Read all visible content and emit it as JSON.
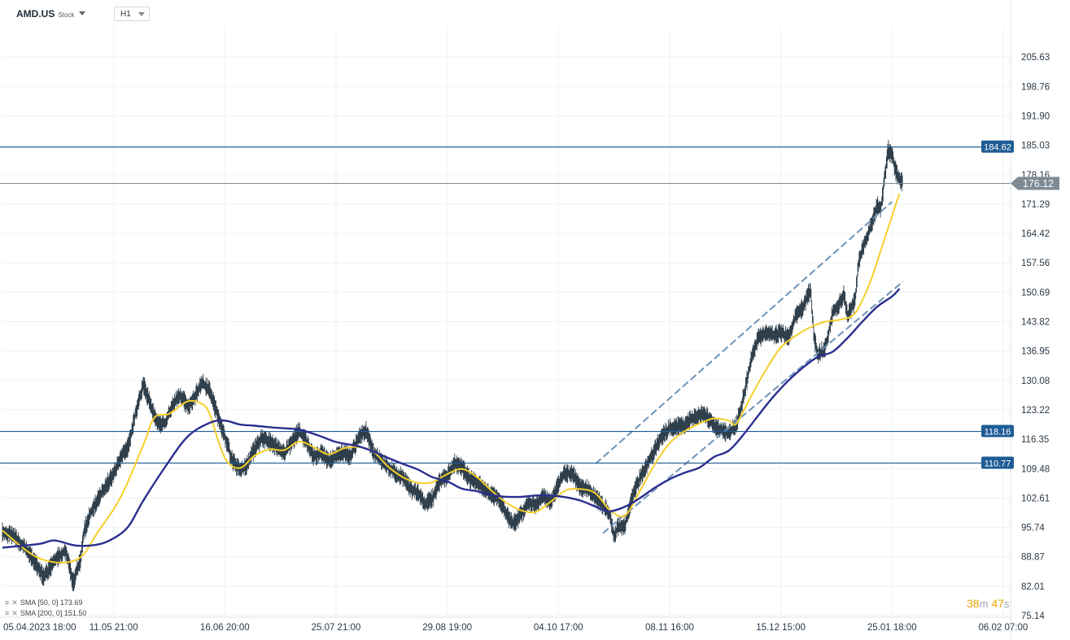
{
  "header": {
    "symbol": "AMD.US",
    "type": "Stock",
    "timeframe": "H1"
  },
  "legend": [
    {
      "label": "SMA [50, 0]",
      "value": "173.69",
      "color": "#f5cf2a"
    },
    {
      "label": "SMA [200, 0]",
      "value": "151.50",
      "color": "#2a2f8f"
    }
  ],
  "timer": {
    "minutes": "38",
    "m": "m",
    "seconds": "47",
    "s": "s"
  },
  "colors": {
    "candles": "#2f3f4b",
    "sma50": "#f5cf2a",
    "sma200": "#2a2f8f",
    "hline": "#1f5d96",
    "channel": "#6e93b8",
    "price_tag": "#7e8a94",
    "level_tag": "#1f5d96",
    "grid": "#eef1f4"
  },
  "chart_data": {
    "type": "line",
    "title": "",
    "ylim": [
      75.14,
      212.5
    ],
    "y_ticks": [
      "205.63",
      "198.76",
      "191.90",
      "185.03",
      "178.16",
      "171.29",
      "164.42",
      "157.56",
      "150.69",
      "143.82",
      "136.95",
      "130.08",
      "123.22",
      "116.35",
      "109.48",
      "102.61",
      "95.74",
      "88.87",
      "82.01",
      "75.14"
    ],
    "x_ticks": [
      "05.04.2023  18:00",
      "11.05  21:00",
      "16.06  20:00",
      "25.07  21:00",
      "29.08  19:00",
      "04.10  17:00",
      "08.11  16:00",
      "15.12  15:00",
      "25.01  18:00",
      "06.02  07:00"
    ],
    "current_price": "176.12",
    "levels": [
      "184.62",
      "118.16",
      "110.77"
    ],
    "series": [
      {
        "name": "price",
        "points": [
          [
            0,
            94.5
          ],
          [
            3,
            93.8
          ],
          [
            6,
            91
          ],
          [
            9,
            87.3
          ],
          [
            11,
            84.2
          ],
          [
            13,
            86.5
          ],
          [
            15,
            88.9
          ],
          [
            17,
            90.3
          ],
          [
            18,
            87.1
          ],
          [
            19,
            82.6
          ],
          [
            21,
            88
          ],
          [
            22,
            94.8
          ],
          [
            24,
            99.6
          ],
          [
            27,
            104.1
          ],
          [
            30,
            108.3
          ],
          [
            32,
            112.1
          ],
          [
            34,
            114.7
          ],
          [
            36,
            122.7
          ],
          [
            38,
            129.2
          ],
          [
            40,
            124.3
          ],
          [
            42,
            119.8
          ],
          [
            44,
            120.4
          ],
          [
            46,
            124.5
          ],
          [
            48,
            126.8
          ],
          [
            50,
            123.8
          ],
          [
            52,
            126.5
          ],
          [
            54,
            129.6
          ],
          [
            56,
            127.5
          ],
          [
            58,
            122
          ],
          [
            60,
            117
          ],
          [
            62,
            111.5
          ],
          [
            64,
            109.2
          ],
          [
            66,
            110.4
          ],
          [
            68,
            114
          ],
          [
            70,
            116.7
          ],
          [
            72,
            115.8
          ],
          [
            74,
            114.5
          ],
          [
            76,
            112.8
          ],
          [
            78,
            115.5
          ],
          [
            80,
            118.3
          ],
          [
            82,
            115.7
          ],
          [
            84,
            112.2
          ],
          [
            86,
            113.3
          ],
          [
            88,
            111.2
          ],
          [
            90,
            112.5
          ],
          [
            92,
            113.2
          ],
          [
            94,
            112.4
          ],
          [
            96,
            116.6
          ],
          [
            98,
            118.6
          ],
          [
            100,
            113.2
          ],
          [
            102,
            111.3
          ],
          [
            104,
            110.2
          ],
          [
            106,
            108.3
          ],
          [
            108,
            107.6
          ],
          [
            110,
            104.7
          ],
          [
            112,
            104
          ],
          [
            114,
            101.3
          ],
          [
            116,
            102.5
          ],
          [
            118,
            106.4
          ],
          [
            120,
            107.8
          ],
          [
            122,
            110.7
          ],
          [
            124,
            109.7
          ],
          [
            126,
            107.2
          ],
          [
            128,
            106.2
          ],
          [
            130,
            104.7
          ],
          [
            132,
            103.3
          ],
          [
            134,
            102.4
          ],
          [
            136,
            98.5
          ],
          [
            138,
            96.6
          ],
          [
            140,
            98.8
          ],
          [
            142,
            101.6
          ],
          [
            144,
            101.1
          ],
          [
            146,
            103.3
          ],
          [
            148,
            101.5
          ],
          [
            150,
            105.9
          ],
          [
            152,
            108.6
          ],
          [
            154,
            107.9
          ],
          [
            156,
            104.8
          ],
          [
            158,
            104.8
          ],
          [
            160,
            102.8
          ],
          [
            162,
            101
          ],
          [
            164,
            98.5
          ],
          [
            165,
            93.5
          ],
          [
            166,
            95.7
          ],
          [
            168,
            96.3
          ],
          [
            170,
            103.3
          ],
          [
            172,
            107.2
          ],
          [
            174,
            110.6
          ],
          [
            176,
            114
          ],
          [
            178,
            117
          ],
          [
            180,
            119
          ],
          [
            182,
            119.4
          ],
          [
            184,
            119.5
          ],
          [
            186,
            121.1
          ],
          [
            188,
            122.3
          ],
          [
            190,
            121.8
          ],
          [
            192,
            119.4
          ],
          [
            194,
            118.4
          ],
          [
            196,
            117.7
          ],
          [
            198,
            119.5
          ],
          [
            200,
            126.5
          ],
          [
            202,
            134.9
          ],
          [
            204,
            140
          ],
          [
            206,
            141.2
          ],
          [
            208,
            140.8
          ],
          [
            210,
            141.2
          ],
          [
            212,
            140.2
          ],
          [
            214,
            145
          ],
          [
            216,
            147.1
          ],
          [
            218,
            151.4
          ],
          [
            219,
            140
          ],
          [
            220,
            136
          ],
          [
            222,
            137.6
          ],
          [
            224,
            146
          ],
          [
            226,
            148.4
          ],
          [
            227,
            150.4
          ],
          [
            228,
            145
          ],
          [
            230,
            148.5
          ],
          [
            231,
            157.6
          ],
          [
            232,
            160.7
          ],
          [
            234,
            165.3
          ],
          [
            236,
            170.9
          ],
          [
            237,
            170
          ],
          [
            238,
            177.2
          ],
          [
            239,
            184
          ],
          [
            240,
            182.6
          ],
          [
            241,
            179
          ],
          [
            242,
            177
          ],
          [
            243,
            176.12
          ]
        ]
      },
      {
        "name": "SMA [50, 0]",
        "points": [
          [
            0,
            95
          ],
          [
            10,
            88.5
          ],
          [
            20,
            88.2
          ],
          [
            26,
            95
          ],
          [
            32,
            103
          ],
          [
            38,
            115
          ],
          [
            41,
            121.4
          ],
          [
            45,
            122.3
          ],
          [
            50,
            125.2
          ],
          [
            54,
            124.5
          ],
          [
            56,
            122
          ],
          [
            60,
            112
          ],
          [
            64,
            109.6
          ],
          [
            68,
            112.5
          ],
          [
            72,
            114
          ],
          [
            76,
            113.8
          ],
          [
            80,
            115.8
          ],
          [
            84,
            114.5
          ],
          [
            88,
            112.8
          ],
          [
            92,
            114.2
          ],
          [
            96,
            114.5
          ],
          [
            100,
            113.5
          ],
          [
            104,
            110
          ],
          [
            108,
            107.5
          ],
          [
            112,
            106.2
          ],
          [
            116,
            106.3
          ],
          [
            120,
            108.2
          ],
          [
            124,
            109.4
          ],
          [
            128,
            107.5
          ],
          [
            132,
            104.3
          ],
          [
            136,
            101.5
          ],
          [
            140,
            99.7
          ],
          [
            144,
            99.4
          ],
          [
            148,
            101.8
          ],
          [
            152,
            104.4
          ],
          [
            156,
            104.7
          ],
          [
            160,
            103.7
          ],
          [
            164,
            99.7
          ],
          [
            168,
            98.5
          ],
          [
            172,
            104.3
          ],
          [
            176,
            110.5
          ],
          [
            180,
            115.4
          ],
          [
            184,
            118.2
          ],
          [
            188,
            120
          ],
          [
            192,
            121.2
          ],
          [
            196,
            120.7
          ],
          [
            198,
            120
          ],
          [
            202,
            126.4
          ],
          [
            206,
            132.6
          ],
          [
            210,
            137.8
          ],
          [
            214,
            140.5
          ],
          [
            218,
            142.5
          ],
          [
            222,
            143.8
          ],
          [
            226,
            144.3
          ],
          [
            230,
            145.8
          ],
          [
            234,
            152.8
          ],
          [
            238,
            163.2
          ],
          [
            242,
            173.69
          ]
        ]
      },
      {
        "name": "SMA [200, 0]",
        "points": [
          [
            0,
            91
          ],
          [
            10,
            91.9
          ],
          [
            14,
            92.7
          ],
          [
            20,
            91.5
          ],
          [
            26,
            91.8
          ],
          [
            30,
            93.2
          ],
          [
            34,
            96
          ],
          [
            38,
            102
          ],
          [
            44,
            110
          ],
          [
            50,
            117
          ],
          [
            56,
            120.2
          ],
          [
            60,
            120.7
          ],
          [
            64,
            119.8
          ],
          [
            68,
            119.5
          ],
          [
            74,
            119
          ],
          [
            80,
            118.6
          ],
          [
            86,
            117
          ],
          [
            90,
            115.7
          ],
          [
            96,
            114.7
          ],
          [
            100,
            113.5
          ],
          [
            104,
            112
          ],
          [
            108,
            110.6
          ],
          [
            112,
            109.3
          ],
          [
            116,
            107.5
          ],
          [
            120,
            106.5
          ],
          [
            124,
            104.8
          ],
          [
            128,
            104.2
          ],
          [
            132,
            103.3
          ],
          [
            136,
            102.9
          ],
          [
            140,
            102.9
          ],
          [
            144,
            103.2
          ],
          [
            148,
            103.2
          ],
          [
            152,
            102.8
          ],
          [
            156,
            102
          ],
          [
            160,
            100.6
          ],
          [
            162,
            99.8
          ],
          [
            164,
            99.5
          ],
          [
            168,
            100.6
          ],
          [
            172,
            102.6
          ],
          [
            176,
            105
          ],
          [
            180,
            107
          ],
          [
            184,
            108.5
          ],
          [
            188,
            109.7
          ],
          [
            192,
            112.2
          ],
          [
            196,
            113.7
          ],
          [
            200,
            117.5
          ],
          [
            204,
            122
          ],
          [
            208,
            126.3
          ],
          [
            212,
            130
          ],
          [
            216,
            133.1
          ],
          [
            220,
            135.6
          ],
          [
            224,
            136.8
          ],
          [
            228,
            140
          ],
          [
            232,
            143.8
          ],
          [
            236,
            147.3
          ],
          [
            240,
            149.7
          ],
          [
            242,
            151.5
          ]
        ]
      },
      {
        "name": "channel upper",
        "points": [
          [
            160,
            110.6
          ],
          [
            240,
            171.8
          ]
        ]
      },
      {
        "name": "channel lower",
        "points": [
          [
            162,
            94.4
          ],
          [
            243,
            153.2
          ]
        ]
      }
    ]
  }
}
